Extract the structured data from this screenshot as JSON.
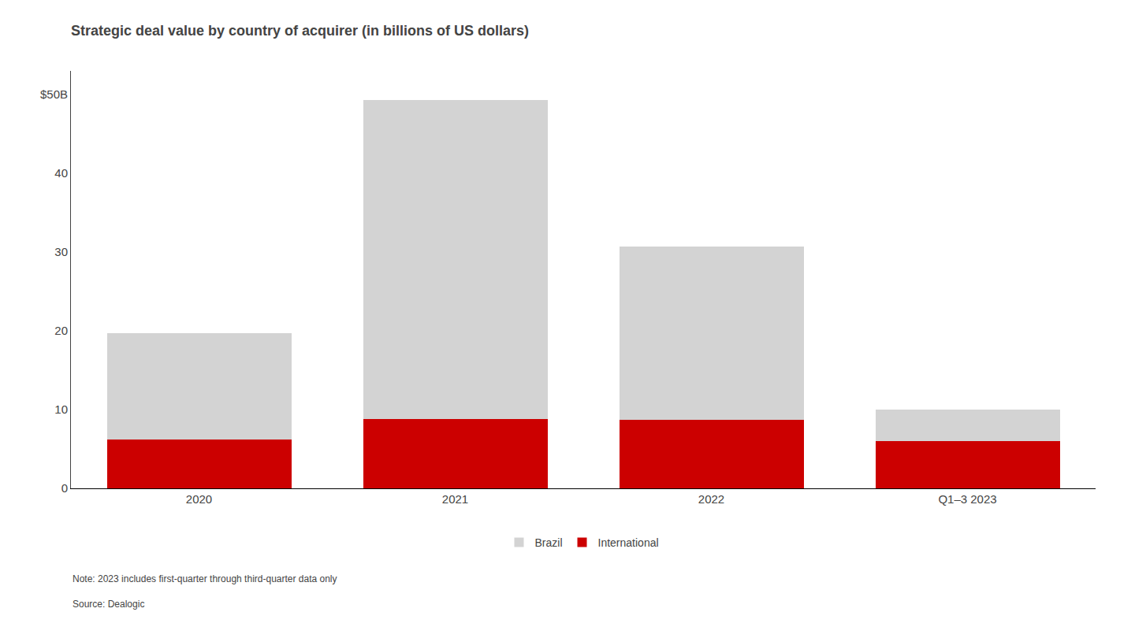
{
  "chart_data": {
    "type": "bar",
    "title": "Strategic deal value by country of acquirer (in billions of US dollars)",
    "categories": [
      "2020",
      "2021",
      "2022",
      "Q1–3 2023"
    ],
    "series": [
      {
        "name": "International",
        "color": "#cc0000",
        "values": [
          6.2,
          8.8,
          8.7,
          6.0
        ]
      },
      {
        "name": "Brazil",
        "color": "#d3d3d3",
        "values": [
          13.5,
          40.5,
          22.0,
          4.0
        ]
      }
    ],
    "stacked": true,
    "ylim": [
      0,
      53
    ],
    "yticks": [
      0,
      10,
      20,
      30,
      40,
      {
        "value": 50,
        "label": "$50B"
      }
    ],
    "grid": false,
    "legend": "bottom",
    "annotations": [
      "Note: 2023 includes first-quarter through third-quarter data only",
      "Source: Dealogic"
    ]
  }
}
